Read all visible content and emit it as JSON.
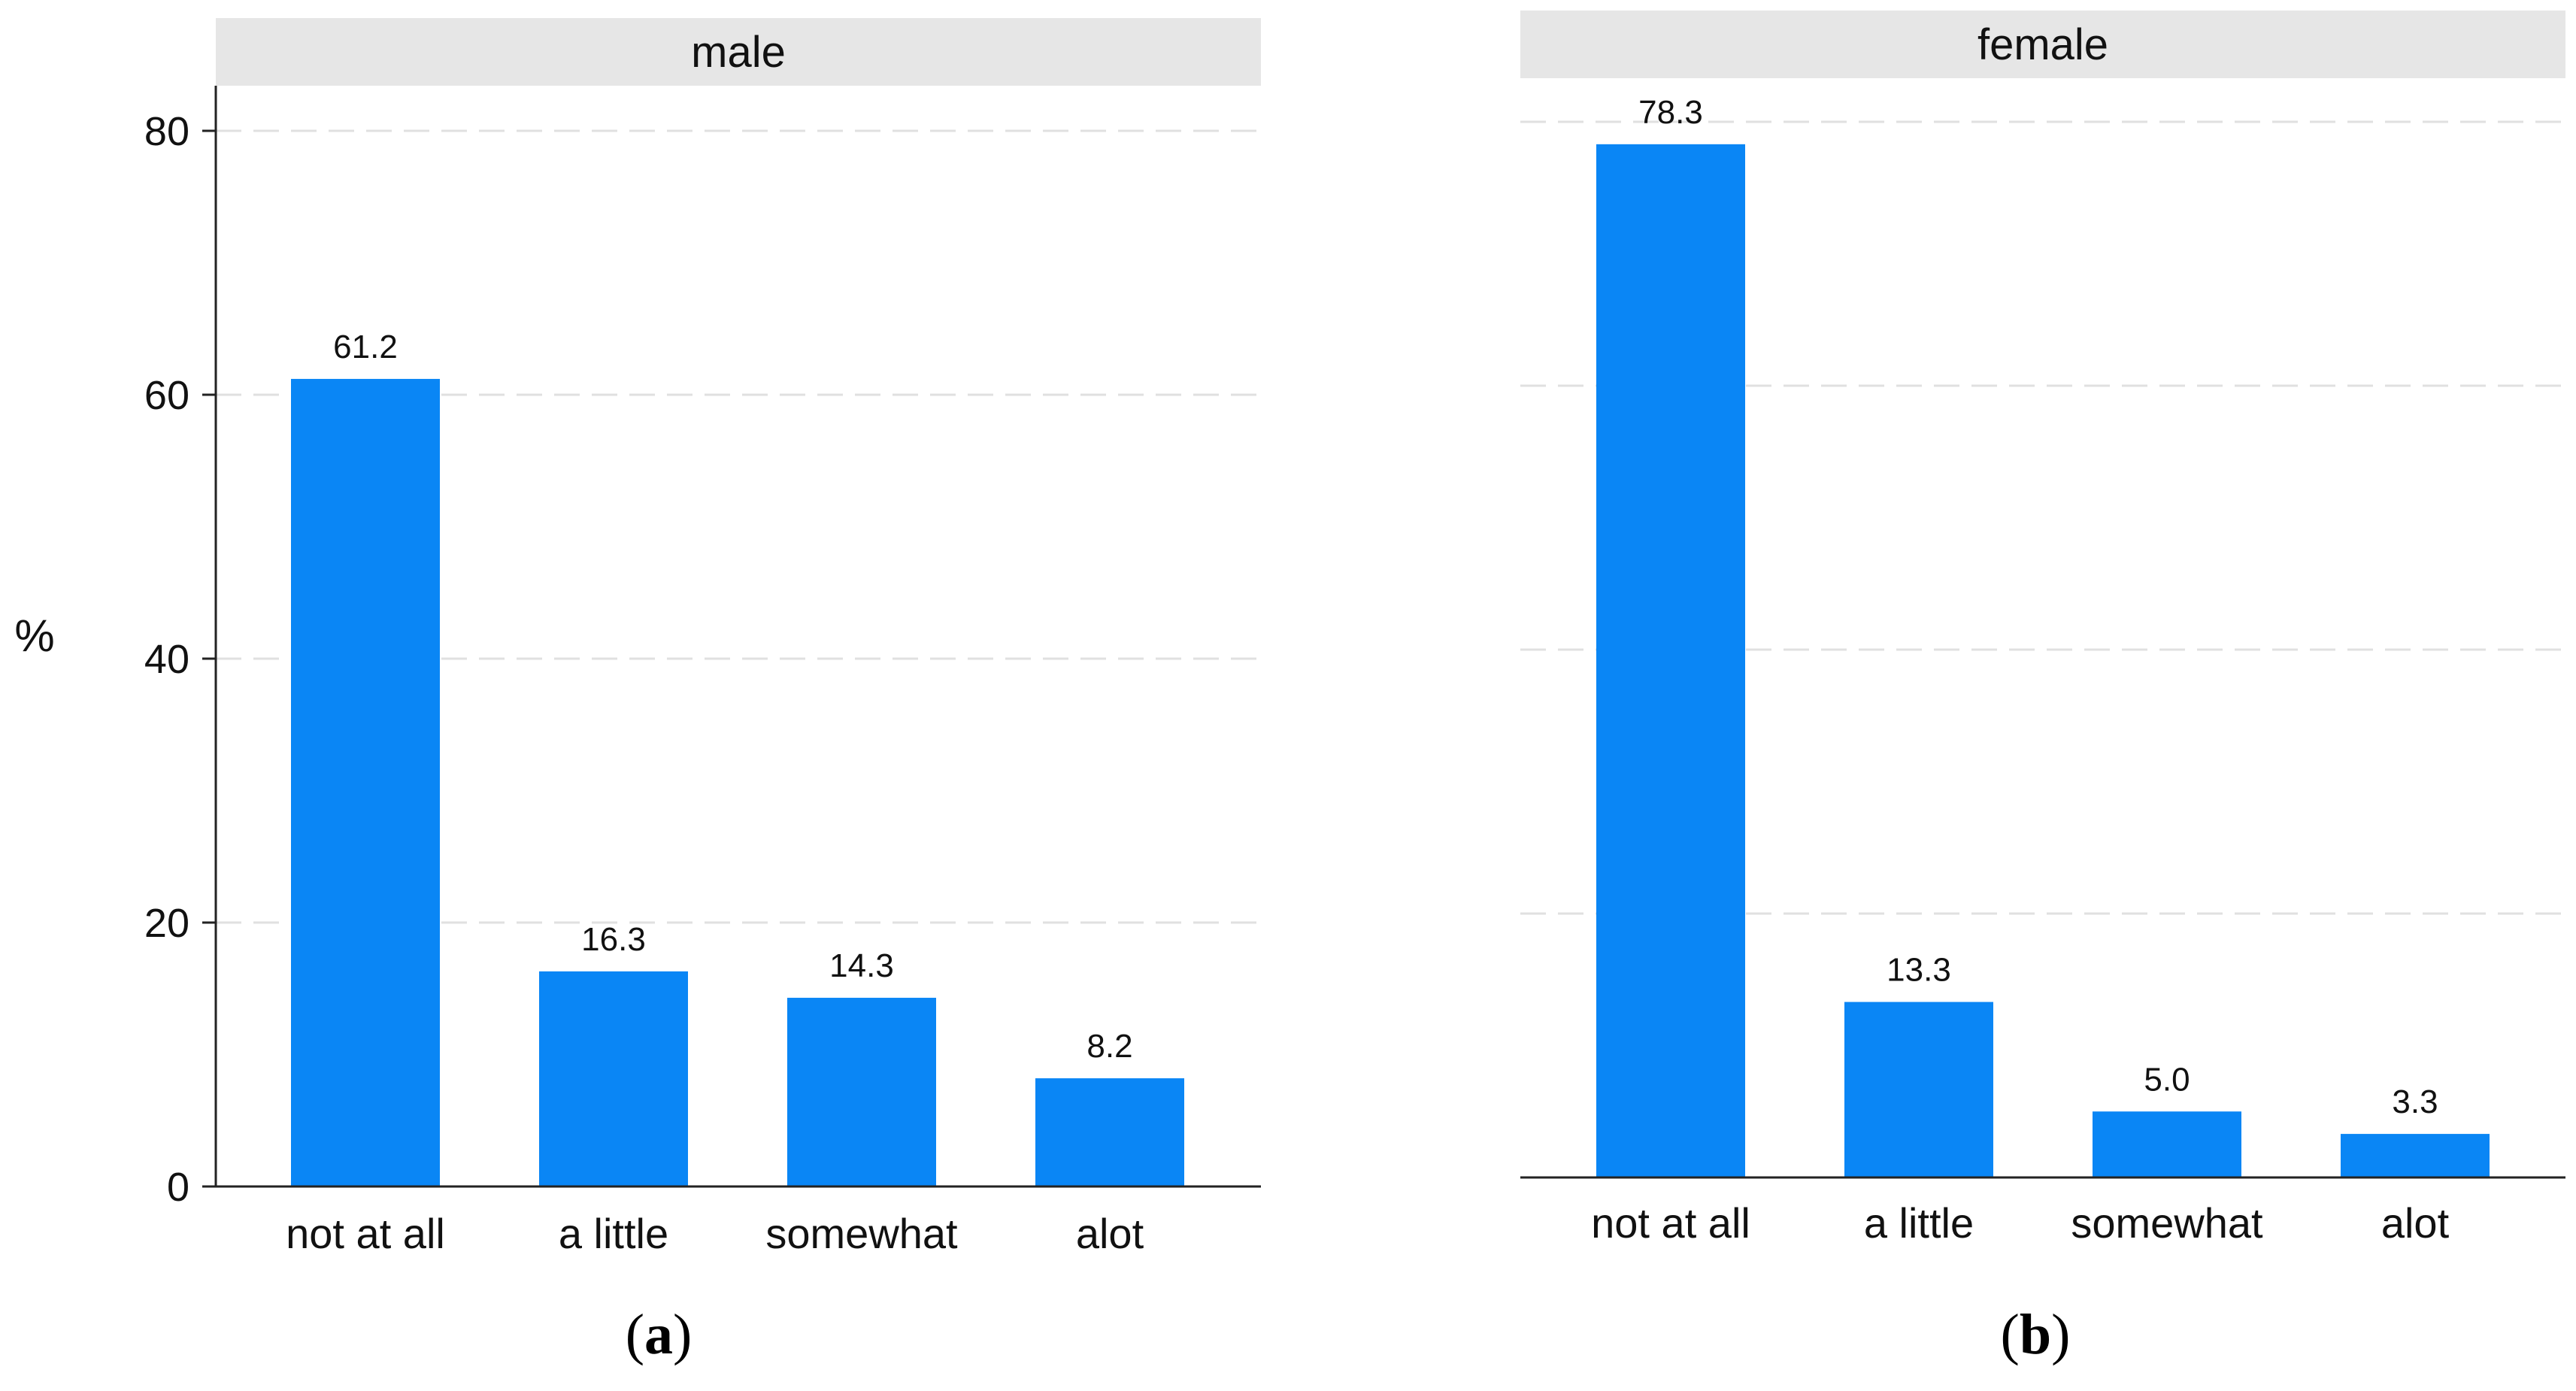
{
  "colors": {
    "bar": "#0a86f5",
    "strip_background": "#e6e6e6",
    "grid": "#e0e0e0",
    "axis": "#222222"
  },
  "ylabel": "%",
  "chart_data": [
    {
      "type": "bar",
      "title": "male",
      "subfigure_label": "(a)",
      "subfigure_letter": "a",
      "categories": [
        "not at all",
        "a little",
        "somewhat",
        "alot"
      ],
      "values": [
        61.2,
        16.3,
        14.3,
        8.2
      ],
      "value_labels": [
        "61.2",
        "16.3",
        "14.3",
        "8.2"
      ],
      "ylabel": "%",
      "ylim": [
        0,
        80
      ],
      "yticks": [
        0,
        20,
        40,
        60,
        80
      ],
      "ytick_labels": [
        "0",
        "20",
        "40",
        "60",
        "80"
      ],
      "grid": true,
      "show_y_axis": true
    },
    {
      "type": "bar",
      "title": "female",
      "subfigure_label": "(b)",
      "subfigure_letter": "b",
      "categories": [
        "not at all",
        "a little",
        "somewhat",
        "alot"
      ],
      "values": [
        78.3,
        13.3,
        5.0,
        3.3
      ],
      "value_labels": [
        "78.3",
        "13.3",
        "5.0",
        "3.3"
      ],
      "ylabel": "",
      "ylim": [
        0,
        80
      ],
      "yticks": [
        0,
        20,
        40,
        60,
        80
      ],
      "ytick_labels": [],
      "grid": true,
      "show_y_axis": false
    }
  ]
}
